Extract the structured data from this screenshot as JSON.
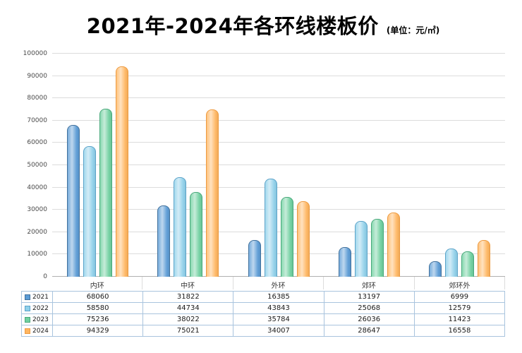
{
  "title": {
    "main": "2021年-2024年各环线楼板价",
    "unit": "(单位：元/㎡)"
  },
  "colors": {
    "grid": "#dcdcdc",
    "axis": "#b0b0b0",
    "table_border": "#a9c4de",
    "title_text": "#000000"
  },
  "chart_data": {
    "type": "bar",
    "title": "2021年-2024年各环线楼板价",
    "unit_label": "(单位：元/㎡)",
    "categories": [
      "内环",
      "中环",
      "外环",
      "郊环",
      "郊环外"
    ],
    "series": [
      {
        "name": "2021",
        "color": "#5b9bd5",
        "border": "#41719c",
        "values": [
          68060,
          31822,
          16385,
          13197,
          6999
        ]
      },
      {
        "name": "2022",
        "color": "#8fd0ea",
        "border": "#5ba3c9",
        "values": [
          58580,
          44734,
          43843,
          25068,
          12579
        ]
      },
      {
        "name": "2023",
        "color": "#70d0a0",
        "border": "#48a87a",
        "values": [
          75236,
          38022,
          35784,
          26036,
          11423
        ]
      },
      {
        "name": "2024",
        "color": "#ffb661",
        "border": "#ed9a40",
        "values": [
          94329,
          75021,
          34007,
          28647,
          16558
        ]
      }
    ],
    "xlabel": "",
    "ylabel": "",
    "ylim": [
      0,
      100000
    ],
    "ytick_step": 10000,
    "yticks": [
      0,
      10000,
      20000,
      30000,
      40000,
      50000,
      60000,
      70000,
      80000,
      90000,
      100000
    ],
    "grid": true,
    "legend_position": "table-left"
  }
}
